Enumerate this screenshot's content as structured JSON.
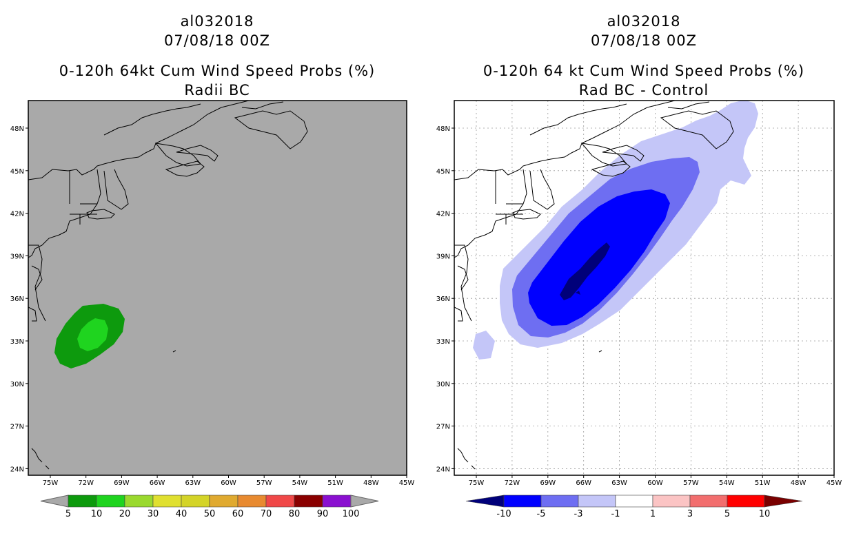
{
  "left_panel": {
    "storm_id": "al032018",
    "datetime": "07/08/18 00Z",
    "title": "0-120h 64kt Cum Wind Speed Probs (%)",
    "subtitle": "Radii BC",
    "background_color": "#a9a9a9",
    "lat_labels": [
      "48N",
      "45N",
      "42N",
      "39N",
      "36N",
      "33N",
      "30N",
      "27N",
      "24N"
    ],
    "lon_labels": [
      "75W",
      "72W",
      "69W",
      "66W",
      "63W",
      "60W",
      "57W",
      "54W",
      "51W",
      "48W",
      "45W"
    ],
    "colorbar": {
      "labels": [
        "5",
        "10",
        "20",
        "30",
        "40",
        "50",
        "60",
        "70",
        "80",
        "90",
        "100"
      ],
      "colors": [
        "#0d9a0d",
        "#1fd41f",
        "#9ad92e",
        "#e0e030",
        "#d4d428",
        "#e0aa30",
        "#e88a30",
        "#f04848",
        "#8a0000",
        "#8a10d0"
      ]
    }
  },
  "right_panel": {
    "storm_id": "al032018",
    "datetime": "07/08/18 00Z",
    "title": "0-120h 64 kt Cum Wind Speed Probs (%)",
    "subtitle": "Rad BC - Control",
    "background_color": "#ffffff",
    "lat_labels": [
      "48N",
      "45N",
      "42N",
      "39N",
      "36N",
      "33N",
      "30N",
      "27N",
      "24N"
    ],
    "lon_labels": [
      "75W",
      "72W",
      "69W",
      "66W",
      "63W",
      "60W",
      "57W",
      "54W",
      "51W",
      "48W",
      "45W"
    ],
    "colorbar": {
      "labels": [
        "-10",
        "-5",
        "-3",
        "-1",
        "1",
        "3",
        "5",
        "10"
      ],
      "colors": [
        "#00007a",
        "#0000ff",
        "#6e6ef2",
        "#c4c6f8",
        "#ffffff",
        "#fbc4c4",
        "#f26e6e",
        "#ff0000",
        "#7a0000"
      ]
    }
  }
}
